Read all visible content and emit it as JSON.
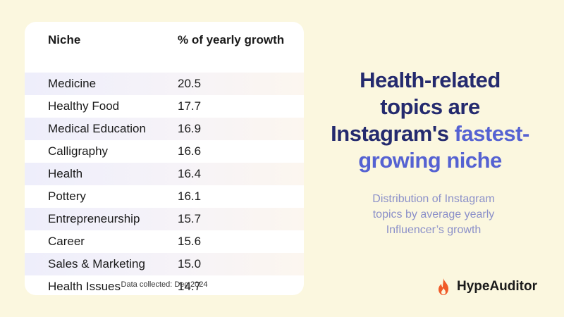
{
  "table": {
    "col_niche": "Niche",
    "col_growth": "% of yearly growth",
    "footnote": "Data collected:  Dec 2024"
  },
  "chart_data": {
    "type": "table",
    "columns": [
      "Niche",
      "% of yearly growth"
    ],
    "rows": [
      {
        "niche": "Medicine",
        "growth": "20.5"
      },
      {
        "niche": "Healthy Food",
        "growth": "17.7"
      },
      {
        "niche": "Medical Education",
        "growth": "16.9"
      },
      {
        "niche": "Calligraphy",
        "growth": "16.6"
      },
      {
        "niche": "Health",
        "growth": "16.4"
      },
      {
        "niche": "Pottery",
        "growth": "16.1"
      },
      {
        "niche": "Entrepreneurship",
        "growth": "15.7"
      },
      {
        "niche": "Career",
        "growth": "15.6"
      },
      {
        "niche": "Sales & Marketing",
        "growth": "15.0"
      },
      {
        "niche": "Health Issues",
        "growth": "14.7"
      }
    ]
  },
  "headline": {
    "line1": "Health-related",
    "line2": "topics are",
    "line3a": "Instagram's ",
    "line3b": "fastest-",
    "line4": "growing niche"
  },
  "subtitle": {
    "line1": "Distribution of Instagram",
    "line2": "topics by average yearly",
    "line3": "Influencer’s growth"
  },
  "brand": {
    "name": "HypeAuditor",
    "icon": "flame-icon"
  },
  "colors": {
    "background": "#fbf7df",
    "headline_dark": "#242a6e",
    "headline_accent": "#5562d2",
    "subtitle": "#8b90c9",
    "flame": "#f05a28"
  }
}
